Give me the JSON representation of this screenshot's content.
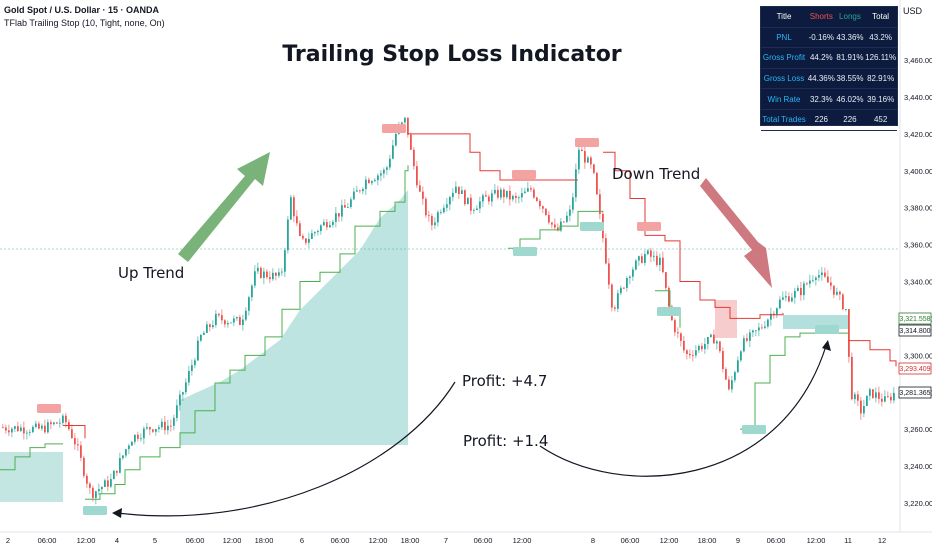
{
  "header": {
    "symbol": "Gold Spot / U.S. Dollar · 15 · OANDA",
    "indicator": "TFlab Trailing Stop (10, Tight, none, On)",
    "currency": "USD"
  },
  "annotations": {
    "title": "Trailing Stop Loss Indicator",
    "up_trend": "Up Trend",
    "down_trend": "Down Trend",
    "profit_1": "Profit: +4.7",
    "profit_2": "Profit: +1.4"
  },
  "stats_table": {
    "headers": [
      "Title",
      "Shorts",
      "Longs",
      "Total"
    ],
    "rows": [
      [
        "PNL",
        "-0.16%",
        "43.36%",
        "43.2%"
      ],
      [
        "Gross Profit",
        "44.2%",
        "81.91%",
        "126.11%"
      ],
      [
        "Gross Loss",
        "44.36%",
        "38.55%",
        "82.91%"
      ],
      [
        "Win Rate",
        "32.3%",
        "46.02%",
        "39.16%"
      ],
      [
        "Total Trades",
        "226",
        "226",
        "452"
      ]
    ]
  },
  "price_axis": {
    "ticks": [
      "3,460.000",
      "3,440.000",
      "3,420.000",
      "3,400.000",
      "3,380.000",
      "3,360.000",
      "3,340.000",
      "3,320.000",
      "3,300.000",
      "3,280.000",
      "3,260.000",
      "3,240.000",
      "3,220.000"
    ],
    "tags": [
      {
        "label": "3,321.558",
        "color": "#2e7d32",
        "bg": "#ffffff"
      },
      {
        "label": "3,314.800",
        "color": "#131722",
        "bg": "#ffffff"
      },
      {
        "label": "3,293.409",
        "color": "#d32f2f",
        "bg": "#ffffff"
      },
      {
        "label": "3,281.365",
        "color": "#131722",
        "bg": "#ffffff"
      }
    ]
  },
  "time_axis": {
    "ticks": [
      "2",
      "06:00",
      "12:00",
      "4",
      "5",
      "06:00",
      "12:00",
      "18:00",
      "6",
      "06:00",
      "12:00",
      "18:00",
      "7",
      "06:00",
      "12:00",
      "8",
      "06:00",
      "12:00",
      "18:00",
      "9",
      "06:00",
      "12:00",
      "11",
      "12"
    ]
  },
  "colors": {
    "up": "#26a69a",
    "down": "#ef5350",
    "long_stop": "#4caf50",
    "short_stop": "#e53935",
    "profit_fill": "#26a69a",
    "up_arrow": "#6aab6a",
    "down_arrow": "#c96a72"
  }
}
